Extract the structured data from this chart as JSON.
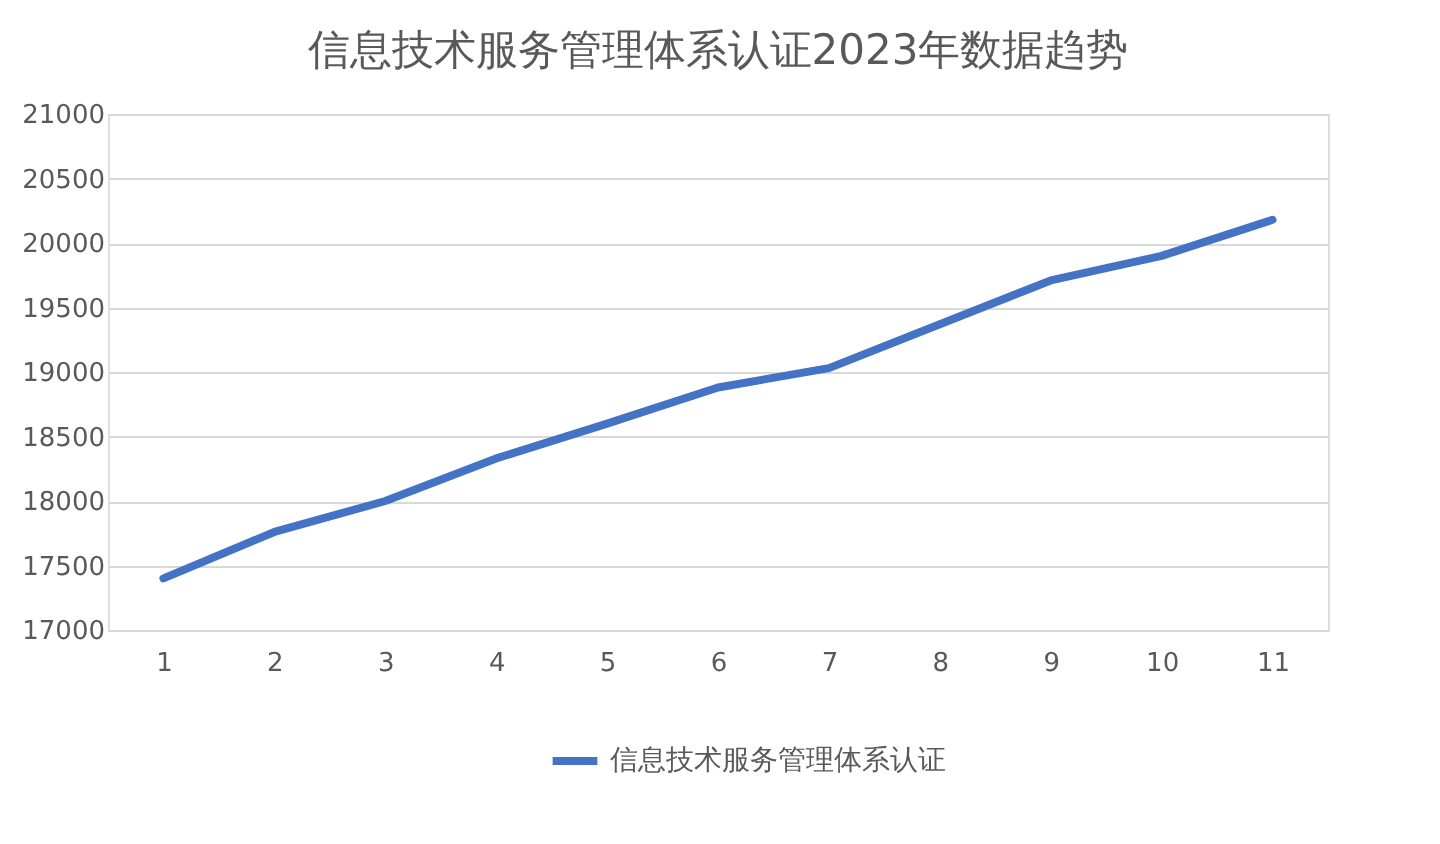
{
  "chart_data": {
    "type": "line",
    "title": "信息技术服务管理体系认证2023年数据趋势",
    "categories": [
      "1",
      "2",
      "3",
      "4",
      "5",
      "6",
      "7",
      "8",
      "9",
      "10",
      "11"
    ],
    "series": [
      {
        "name": "信息技术服务管理体系认证",
        "color": "#4472c4",
        "values": [
          17400,
          17760,
          18000,
          18330,
          18600,
          18880,
          19030,
          19370,
          19710,
          19900,
          20180
        ]
      }
    ],
    "ylim": [
      17000,
      21000
    ],
    "yticks": [
      17000,
      17500,
      18000,
      18500,
      19000,
      19500,
      20000,
      20500,
      21000
    ],
    "grid": "y",
    "legend": "bottom",
    "marker": "none",
    "line_style": "solid"
  }
}
